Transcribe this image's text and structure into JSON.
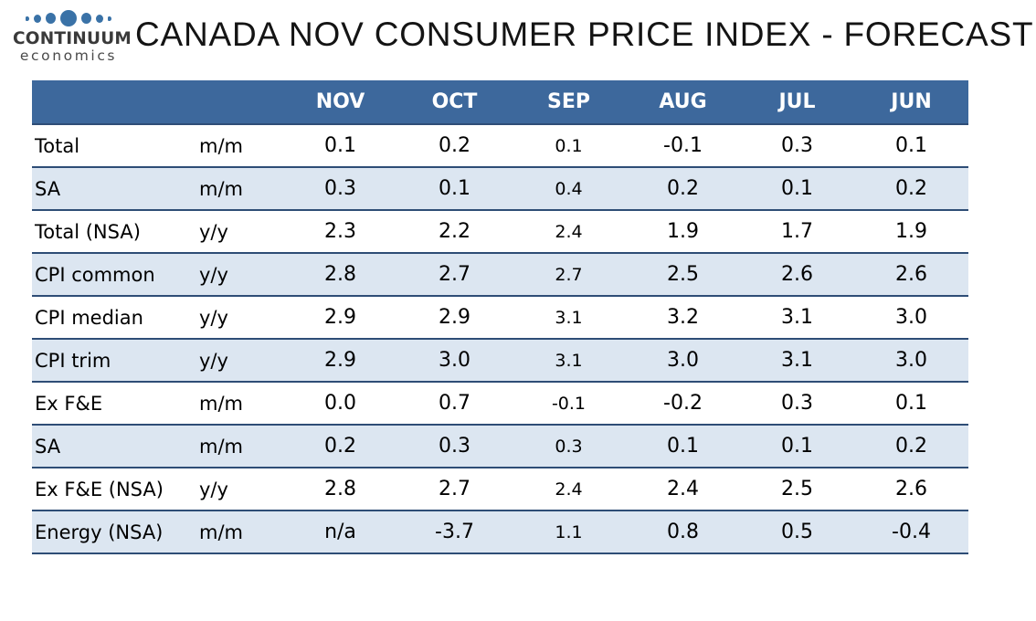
{
  "logo": {
    "name": "CONTINUUM",
    "tagline": "economics"
  },
  "title": "CANADA NOV CONSUMER PRICE INDEX - FORECAST",
  "colors": {
    "header_bg": "#3D689C",
    "alt_row_bg": "#DCE6F1",
    "row_border": "#2E4D76",
    "logo_dot": "#3A72A7",
    "header_text": "#FFFFFF"
  },
  "chart_data": {
    "type": "table",
    "title": "CANADA NOV CONSUMER PRICE INDEX - FORECAST",
    "columns": [
      "",
      "",
      "NOV",
      "OCT",
      "SEP",
      "AUG",
      "JUL",
      "JUN"
    ],
    "rows": [
      [
        "Total",
        "m/m",
        "0.1",
        "0.2",
        "0.1",
        "-0.1",
        "0.3",
        "0.1"
      ],
      [
        "SA",
        "m/m",
        "0.3",
        "0.1",
        "0.4",
        "0.2",
        "0.1",
        "0.2"
      ],
      [
        "Total (NSA)",
        "y/y",
        "2.3",
        "2.2",
        "2.4",
        "1.9",
        "1.7",
        "1.9"
      ],
      [
        "CPI common",
        "y/y",
        "2.8",
        "2.7",
        "2.7",
        "2.5",
        "2.6",
        "2.6"
      ],
      [
        "CPI median",
        "y/y",
        "2.9",
        "2.9",
        "3.1",
        "3.2",
        "3.1",
        "3.0"
      ],
      [
        "CPI trim",
        "y/y",
        "2.9",
        "3.0",
        "3.1",
        "3.0",
        "3.1",
        "3.0"
      ],
      [
        "Ex F&E",
        "m/m",
        "0.0",
        "0.7",
        "-0.1",
        "-0.2",
        "0.3",
        "0.1"
      ],
      [
        "SA",
        "m/m",
        "0.2",
        "0.3",
        "0.3",
        "0.1",
        "0.1",
        "0.2"
      ],
      [
        "Ex F&E (NSA)",
        "y/y",
        "2.8",
        "2.7",
        "2.4",
        "2.4",
        "2.5",
        "2.6"
      ],
      [
        "Energy (NSA)",
        "m/m",
        "n/a",
        "-3.7",
        "1.1",
        "0.8",
        "0.5",
        "-0.4"
      ]
    ]
  }
}
